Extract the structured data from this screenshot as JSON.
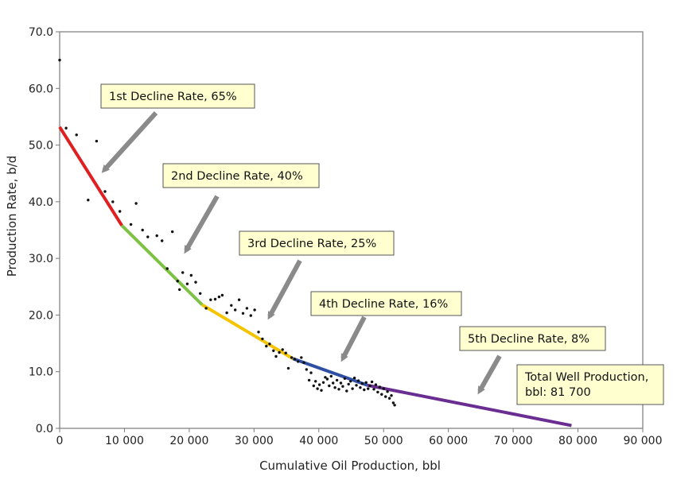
{
  "chart_data": {
    "type": "scatter",
    "title": "",
    "xlabel": "Cumulative Oil Production, bbl",
    "ylabel": "Production Rate, b/d",
    "xlim": [
      0,
      90000
    ],
    "ylim": [
      0,
      70
    ],
    "x_ticks": [
      0,
      10000,
      20000,
      30000,
      40000,
      50000,
      60000,
      70000,
      80000,
      90000
    ],
    "x_tick_labels": [
      "0",
      "10 000",
      "20 000",
      "30 000",
      "40 000",
      "50 000",
      "60 000",
      "70 000",
      "80 000",
      "90 000"
    ],
    "y_ticks": [
      0,
      10,
      20,
      30,
      40,
      50,
      60,
      70
    ],
    "y_tick_labels": [
      "0.0",
      "10.0",
      "20.0",
      "30.0",
      "40.0",
      "50.0",
      "60.0",
      "70.0"
    ],
    "grid": false,
    "colors": {
      "points": "#111111",
      "axis": "#7a7a7a",
      "callout_fill": "#ffffd0",
      "callout_border": "#555555",
      "arrow": "#8a8a8a"
    },
    "segments": [
      {
        "color": "#e02020",
        "points": [
          [
            0,
            53.2
          ],
          [
            9600,
            35.8
          ]
        ]
      },
      {
        "color": "#7dc242",
        "points": [
          [
            9600,
            35.8
          ],
          [
            22000,
            21.8
          ]
        ]
      },
      {
        "color": "#f5c400",
        "points": [
          [
            22000,
            21.8
          ],
          [
            36000,
            12.3
          ]
        ]
      },
      {
        "color": "#2e4fa3",
        "points": [
          [
            36000,
            12.3
          ],
          [
            47500,
            7.6
          ]
        ]
      },
      {
        "color": "#6a2d91",
        "points": [
          [
            47500,
            7.6
          ],
          [
            79000,
            0.5
          ]
        ]
      }
    ],
    "points": [
      [
        0,
        65.0
      ],
      [
        1000,
        53.0
      ],
      [
        2600,
        51.8
      ],
      [
        4400,
        40.3
      ],
      [
        5700,
        50.7
      ],
      [
        7000,
        41.8
      ],
      [
        8200,
        40.0
      ],
      [
        9300,
        38.3
      ],
      [
        11000,
        36.0
      ],
      [
        11800,
        39.7
      ],
      [
        12800,
        35.0
      ],
      [
        13600,
        33.8
      ],
      [
        15000,
        34.0
      ],
      [
        15800,
        33.1
      ],
      [
        16600,
        28.2
      ],
      [
        17400,
        34.7
      ],
      [
        18200,
        26.0
      ],
      [
        18500,
        24.5
      ],
      [
        19000,
        27.5
      ],
      [
        19700,
        25.5
      ],
      [
        20300,
        27.0
      ],
      [
        21000,
        25.8
      ],
      [
        21700,
        23.8
      ],
      [
        22600,
        21.2
      ],
      [
        23300,
        22.7
      ],
      [
        24000,
        22.8
      ],
      [
        24600,
        23.2
      ],
      [
        25100,
        23.5
      ],
      [
        25800,
        20.4
      ],
      [
        26500,
        21.7
      ],
      [
        27100,
        20.9
      ],
      [
        27700,
        22.7
      ],
      [
        28300,
        20.3
      ],
      [
        28900,
        21.2
      ],
      [
        29500,
        19.9
      ],
      [
        30100,
        20.9
      ],
      [
        30700,
        17.0
      ],
      [
        31300,
        15.8
      ],
      [
        31900,
        14.5
      ],
      [
        32400,
        14.9
      ],
      [
        33000,
        13.7
      ],
      [
        33400,
        12.7
      ],
      [
        33900,
        13.4
      ],
      [
        34400,
        13.9
      ],
      [
        34900,
        13.3
      ],
      [
        35300,
        10.6
      ],
      [
        35800,
        12.5
      ],
      [
        36300,
        12.2
      ],
      [
        36800,
        11.8
      ],
      [
        37300,
        12.5
      ],
      [
        37700,
        11.6
      ],
      [
        38100,
        10.4
      ],
      [
        38500,
        8.5
      ],
      [
        38800,
        9.8
      ],
      [
        39200,
        7.5
      ],
      [
        39500,
        8.3
      ],
      [
        39800,
        7.0
      ],
      [
        40100,
        7.7
      ],
      [
        40400,
        6.7
      ],
      [
        40700,
        8.1
      ],
      [
        41000,
        9.0
      ],
      [
        41300,
        8.7
      ],
      [
        41600,
        7.5
      ],
      [
        41900,
        9.2
      ],
      [
        42200,
        8.0
      ],
      [
        42500,
        7.2
      ],
      [
        42800,
        8.5
      ],
      [
        43100,
        6.9
      ],
      [
        43400,
        8.0
      ],
      [
        43700,
        7.4
      ],
      [
        44000,
        8.8
      ],
      [
        44300,
        6.6
      ],
      [
        44600,
        7.8
      ],
      [
        44900,
        8.3
      ],
      [
        45200,
        7.0
      ],
      [
        45500,
        8.9
      ],
      [
        45800,
        7.6
      ],
      [
        46100,
        8.4
      ],
      [
        46400,
        7.2
      ],
      [
        46700,
        7.9
      ],
      [
        47000,
        6.8
      ],
      [
        47300,
        8.1
      ],
      [
        47600,
        7.0
      ],
      [
        47900,
        7.5
      ],
      [
        48200,
        8.2
      ],
      [
        48500,
        6.9
      ],
      [
        48800,
        7.7
      ],
      [
        49100,
        6.4
      ],
      [
        49400,
        7.3
      ],
      [
        49700,
        6.0
      ],
      [
        50000,
        7.0
      ],
      [
        50300,
        5.6
      ],
      [
        50600,
        6.5
      ],
      [
        50900,
        5.3
      ],
      [
        51200,
        5.8
      ],
      [
        51500,
        4.5
      ],
      [
        51700,
        4.1
      ]
    ],
    "annotations": [
      {
        "text": "1st Decline Rate, 65%",
        "lines": [
          "1st Decline Rate, 65%"
        ]
      },
      {
        "text": "2nd Decline Rate, 40%",
        "lines": [
          "2nd Decline Rate, 40%"
        ]
      },
      {
        "text": "3rd Decline Rate, 25%",
        "lines": [
          "3rd Decline Rate, 25%"
        ]
      },
      {
        "text": "4th Decline Rate, 16%",
        "lines": [
          "4th Decline Rate, 16%"
        ]
      },
      {
        "text": "5th Decline Rate, 8%",
        "lines": [
          "5th Decline Rate, 8%"
        ]
      },
      {
        "text": "Total Well Production, bbl: 81 700",
        "lines": [
          "Total Well Production,",
          "bbl: 81 700"
        ]
      }
    ]
  }
}
